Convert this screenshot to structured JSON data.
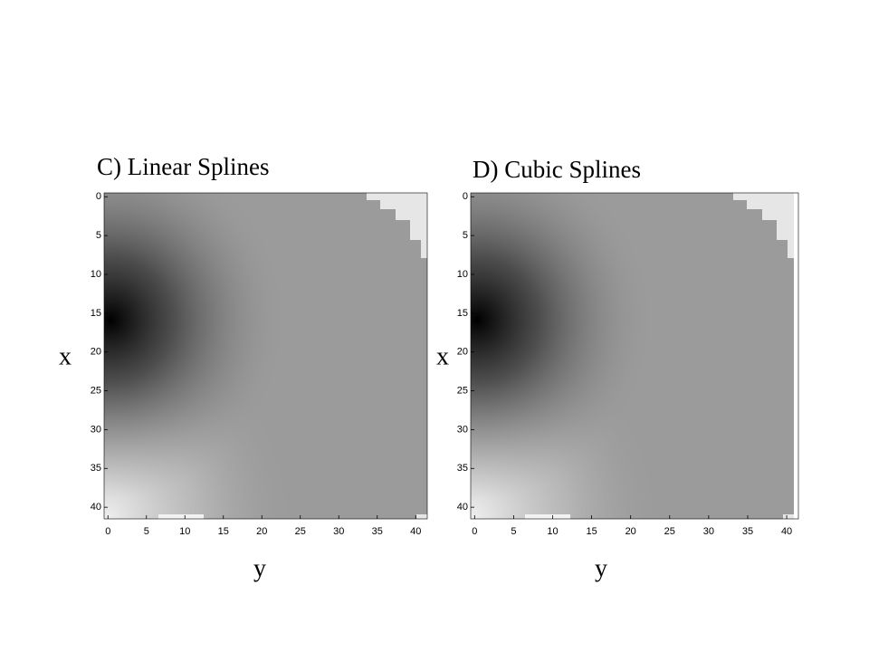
{
  "chart_data": [
    {
      "type": "heatmap",
      "title": "C) Linear Splines",
      "xlabel": "y",
      "ylabel": "x",
      "xlim": [
        -0.5,
        41.5
      ],
      "ylim": [
        41.5,
        -0.5
      ],
      "xticks": [
        0,
        5,
        10,
        15,
        20,
        25,
        30,
        35,
        40
      ],
      "yticks": [
        0,
        5,
        10,
        15,
        20,
        25,
        30,
        35,
        40
      ]
    },
    {
      "type": "heatmap",
      "title": "D) Cubic Splines",
      "xlabel": "y",
      "ylabel": "x",
      "xlim": [
        -0.5,
        41.5
      ],
      "ylim": [
        41.5,
        -0.5
      ],
      "xticks": [
        0,
        5,
        10,
        15,
        20,
        25,
        30,
        35,
        40
      ],
      "yticks": [
        0,
        5,
        10,
        15,
        20,
        25,
        30,
        35,
        40
      ]
    }
  ]
}
